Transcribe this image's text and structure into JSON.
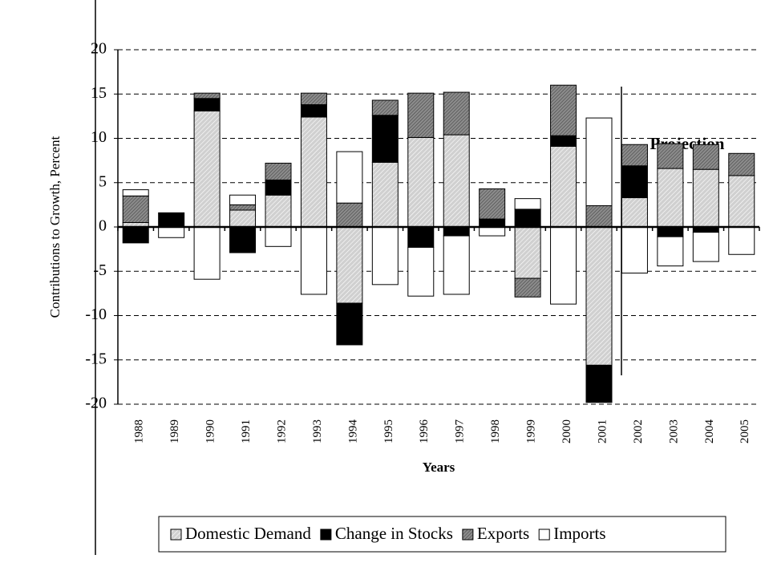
{
  "chart_data": {
    "type": "bar",
    "stacked": true,
    "y_label": "Contributions to Growth, Percent",
    "x_label": "Years",
    "annotation": "Projection",
    "categories": [
      "1988",
      "1989",
      "1990",
      "1991",
      "1992",
      "1993",
      "1994",
      "1995",
      "1996",
      "1997",
      "1998",
      "1999",
      "2000",
      "2001",
      "2002",
      "2003",
      "2004",
      "2005"
    ],
    "series": [
      {
        "name": "Domestic Demand",
        "color": "#d0d0d0",
        "values": [
          0.5,
          0,
          13.1,
          1.9,
          3.6,
          12.4,
          -8.6,
          7.3,
          10.1,
          10.4,
          0,
          -5.8,
          9.1,
          -15.6,
          3.3,
          6.6,
          6.5,
          5.8
        ]
      },
      {
        "name": "Change in Stocks",
        "color": "#000000",
        "values": [
          -1.8,
          1.6,
          1.4,
          -2.9,
          1.7,
          1.4,
          -4.7,
          5.3,
          -2.3,
          -1.0,
          0.9,
          2.0,
          1.2,
          -4.2,
          3.6,
          -1.1,
          -0.6,
          0
        ]
      },
      {
        "name": "Exports",
        "color": "#8c8c8c",
        "values": [
          3.0,
          0,
          0.6,
          0.6,
          1.9,
          1.3,
          2.7,
          1.7,
          5.0,
          4.8,
          3.4,
          -2.1,
          5.7,
          2.4,
          2.4,
          2.8,
          2.8,
          2.5
        ]
      },
      {
        "name": "Imports",
        "color": "#ffffff",
        "values": [
          0.7,
          -1.2,
          -5.9,
          1.1,
          -2.2,
          -7.6,
          5.8,
          -6.5,
          -5.5,
          -6.6,
          -1.0,
          1.2,
          -8.7,
          9.9,
          -5.2,
          -3.3,
          -3.3,
          -3.1
        ]
      }
    ],
    "ylim": [
      -20,
      20
    ],
    "yticks": [
      -20,
      -15,
      -10,
      -5,
      0,
      5,
      10,
      15,
      20
    ],
    "grid": true,
    "legend": "bottom"
  }
}
